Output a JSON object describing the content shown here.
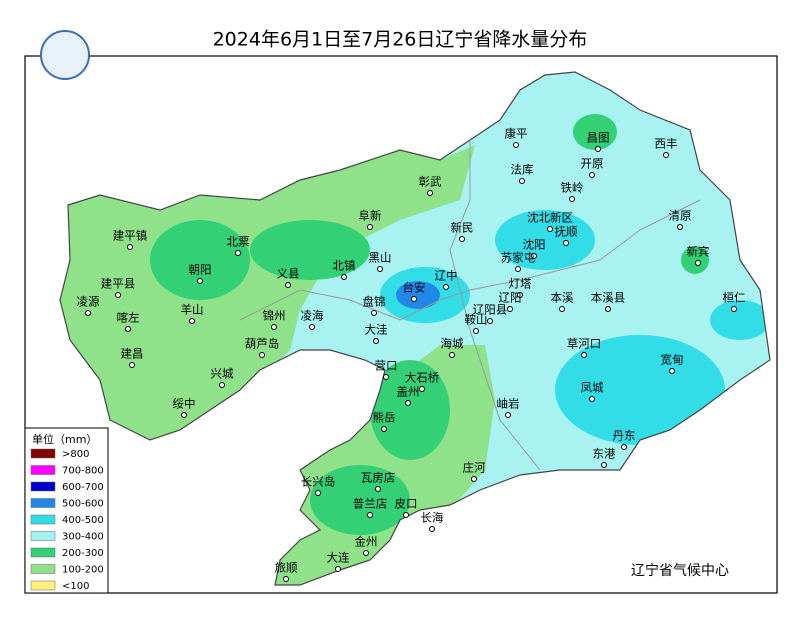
{
  "title": "2024年6月1日至7月26日辽宁省降水量分布",
  "legend": {
    "title": "单位（mm）",
    "items": [
      {
        "label": ">800",
        "color": "#800000"
      },
      {
        "label": "700-800",
        "color": "#ff00ff"
      },
      {
        "label": "600-700",
        "color": "#0000cc"
      },
      {
        "label": "500-600",
        "color": "#2288e8"
      },
      {
        "label": "400-500",
        "color": "#33dde8"
      },
      {
        "label": "300-400",
        "color": "#a8f2f2"
      },
      {
        "label": "200-300",
        "color": "#33d075"
      },
      {
        "label": "100-200",
        "color": "#8fe28a"
      },
      {
        "label": "<100",
        "color": "#fff07a"
      }
    ]
  },
  "cities": [
    "康平",
    "昌图",
    "西丰",
    "开原",
    "法库",
    "铁岭",
    "彰武",
    "阜新",
    "新民",
    "沈北新区",
    "清原",
    "建平镇",
    "北票",
    "沈阳",
    "抚顺",
    "黑山",
    "北镇",
    "苏家屯",
    "新宾",
    "朝阳",
    "义县",
    "辽中",
    "台安",
    "灯塔",
    "建平县",
    "凌源",
    "羊山",
    "锦州",
    "凌海",
    "盘锦",
    "辽阳",
    "辽阳县",
    "本溪",
    "本溪县",
    "桓仁",
    "喀左",
    "大洼",
    "鞍山",
    "葫芦岛",
    "海城",
    "草河口",
    "建昌",
    "宽甸",
    "营口",
    "大石桥",
    "兴城",
    "盖州",
    "凤城",
    "绥中",
    "岫岩",
    "熊岳",
    "丹东",
    "东港",
    "庄河",
    "长兴岛",
    "瓦房店",
    "普兰店",
    "皮口",
    "长海",
    "金州",
    "大连",
    "旅顺"
  ],
  "footer": "辽宁省气候中心"
}
